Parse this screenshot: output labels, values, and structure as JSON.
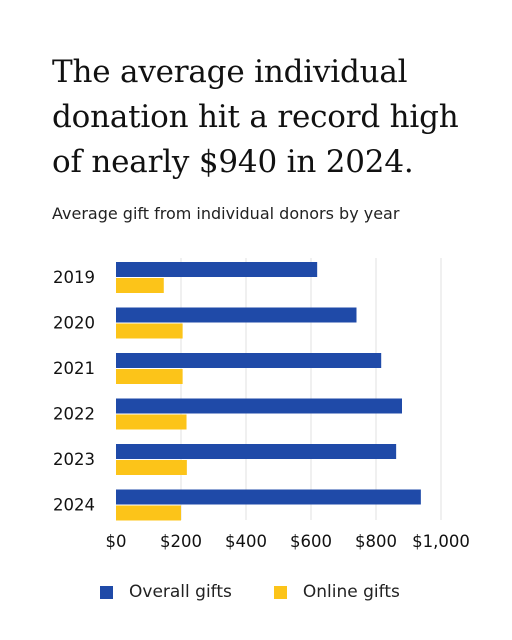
{
  "headline": "The average individual donation hit a record high of nearly $940 in 2024.",
  "chart_data": {
    "type": "bar",
    "orientation": "horizontal",
    "title": "Average gift from individual donors by year",
    "categories": [
      "2019",
      "2020",
      "2021",
      "2022",
      "2023",
      "2024"
    ],
    "series": [
      {
        "name": "Overall gifts",
        "color": "#1f4aa8",
        "values": [
          619,
          740,
          816,
          880,
          862,
          938
        ]
      },
      {
        "name": "Online gifts",
        "color": "#fcc419",
        "values": [
          147,
          205,
          205,
          217,
          218,
          200
        ]
      }
    ],
    "xlim": [
      0,
      1000
    ],
    "xticks": [
      0,
      200,
      400,
      600,
      800,
      1000
    ],
    "xtick_labels": [
      "$0",
      "$200",
      "$400",
      "$600",
      "$800",
      "$1,000"
    ],
    "grid": true,
    "legend_position": "bottom"
  }
}
